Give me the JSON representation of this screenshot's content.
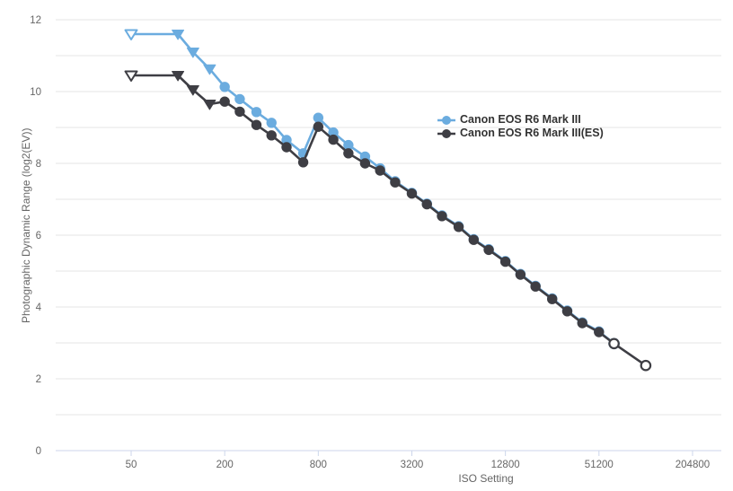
{
  "chart_data": {
    "type": "line",
    "title": "",
    "xlabel": "ISO Setting",
    "ylabel": "Photographic Dynamic Range (log2(EV))",
    "x_axis": {
      "scale": "log",
      "tick_isos": [
        50,
        200,
        800,
        3200,
        12800,
        51200,
        204800
      ],
      "tick_labels": [
        "50",
        "200",
        "800",
        "3200",
        "12800",
        "51200",
        "204800"
      ]
    },
    "y_axis": {
      "min": 0,
      "max": 12,
      "grid_step": 1,
      "tick_values": [
        0,
        2,
        4,
        6,
        8,
        10,
        12
      ],
      "tick_labels": [
        "0",
        "2",
        "4",
        "6",
        "8",
        "10",
        "12"
      ]
    },
    "grid": true,
    "legend_position": "inside-center-right",
    "colors": {
      "series_blue": "#6BACDF",
      "series_black": "#3E3E44",
      "grid_line": "#e6e6e6",
      "x_axis_line": "#ccd6eb",
      "tick_label": "#666666",
      "legend_text": "#333333",
      "background": "#ffffff"
    },
    "marker_note": "triangle-open and circle-open markers are white-filled (extended ISO settings); triangle and circle are solid",
    "series": [
      {
        "name": "Canon EOS R6 Mark III",
        "color": "#6BACDF",
        "points": [
          {
            "iso": 50,
            "pdr": 11.6,
            "marker": "triangle-open"
          },
          {
            "iso": 100,
            "pdr": 11.6,
            "marker": "triangle"
          },
          {
            "iso": 125,
            "pdr": 11.1,
            "marker": "triangle"
          },
          {
            "iso": 160,
            "pdr": 10.63,
            "marker": "triangle"
          },
          {
            "iso": 200,
            "pdr": 10.13,
            "marker": "circle"
          },
          {
            "iso": 250,
            "pdr": 9.79,
            "marker": "circle"
          },
          {
            "iso": 320,
            "pdr": 9.43,
            "marker": "circle"
          },
          {
            "iso": 400,
            "pdr": 9.13,
            "marker": "circle"
          },
          {
            "iso": 500,
            "pdr": 8.65,
            "marker": "circle"
          },
          {
            "iso": 640,
            "pdr": 8.28,
            "marker": "circle"
          },
          {
            "iso": 800,
            "pdr": 9.27,
            "marker": "circle"
          },
          {
            "iso": 1000,
            "pdr": 8.86,
            "marker": "circle"
          },
          {
            "iso": 1250,
            "pdr": 8.51,
            "marker": "circle"
          },
          {
            "iso": 1600,
            "pdr": 8.19,
            "marker": "circle"
          },
          {
            "iso": 2000,
            "pdr": 7.86,
            "marker": "circle"
          },
          {
            "iso": 2500,
            "pdr": 7.5,
            "marker": "circle"
          },
          {
            "iso": 3200,
            "pdr": 7.18,
            "marker": "circle"
          },
          {
            "iso": 4000,
            "pdr": 6.88,
            "marker": "circle"
          },
          {
            "iso": 5000,
            "pdr": 6.55,
            "marker": "circle"
          },
          {
            "iso": 6400,
            "pdr": 6.25,
            "marker": "circle"
          },
          {
            "iso": 8000,
            "pdr": 5.89,
            "marker": "circle"
          },
          {
            "iso": 10000,
            "pdr": 5.61,
            "marker": "circle"
          },
          {
            "iso": 12800,
            "pdr": 5.28,
            "marker": "circle"
          },
          {
            "iso": 16000,
            "pdr": 4.92,
            "marker": "circle"
          },
          {
            "iso": 20000,
            "pdr": 4.59,
            "marker": "circle"
          },
          {
            "iso": 25600,
            "pdr": 4.24,
            "marker": "circle"
          },
          {
            "iso": 32000,
            "pdr": 3.9,
            "marker": "circle"
          },
          {
            "iso": 40000,
            "pdr": 3.57,
            "marker": "circle"
          },
          {
            "iso": 51200,
            "pdr": 3.32,
            "marker": "circle"
          },
          {
            "iso": 64000,
            "pdr": 2.98,
            "marker": "circle-open"
          }
        ]
      },
      {
        "name": "Canon EOS R6 Mark III(ES)",
        "color": "#3E3E44",
        "points": [
          {
            "iso": 50,
            "pdr": 10.45,
            "marker": "triangle-open"
          },
          {
            "iso": 100,
            "pdr": 10.45,
            "marker": "triangle"
          },
          {
            "iso": 125,
            "pdr": 10.05,
            "marker": "triangle"
          },
          {
            "iso": 160,
            "pdr": 9.65,
            "marker": "triangle"
          },
          {
            "iso": 200,
            "pdr": 9.72,
            "marker": "circle"
          },
          {
            "iso": 250,
            "pdr": 9.44,
            "marker": "circle"
          },
          {
            "iso": 320,
            "pdr": 9.07,
            "marker": "circle"
          },
          {
            "iso": 400,
            "pdr": 8.78,
            "marker": "circle"
          },
          {
            "iso": 500,
            "pdr": 8.45,
            "marker": "circle"
          },
          {
            "iso": 640,
            "pdr": 8.03,
            "marker": "circle"
          },
          {
            "iso": 800,
            "pdr": 9.02,
            "marker": "circle"
          },
          {
            "iso": 1000,
            "pdr": 8.66,
            "marker": "circle"
          },
          {
            "iso": 1250,
            "pdr": 8.28,
            "marker": "circle"
          },
          {
            "iso": 1600,
            "pdr": 8.0,
            "marker": "circle"
          },
          {
            "iso": 2000,
            "pdr": 7.8,
            "marker": "circle"
          },
          {
            "iso": 2500,
            "pdr": 7.47,
            "marker": "circle"
          },
          {
            "iso": 3200,
            "pdr": 7.16,
            "marker": "circle"
          },
          {
            "iso": 4000,
            "pdr": 6.86,
            "marker": "circle"
          },
          {
            "iso": 5000,
            "pdr": 6.53,
            "marker": "circle"
          },
          {
            "iso": 6400,
            "pdr": 6.23,
            "marker": "circle"
          },
          {
            "iso": 8000,
            "pdr": 5.87,
            "marker": "circle"
          },
          {
            "iso": 10000,
            "pdr": 5.59,
            "marker": "circle"
          },
          {
            "iso": 12800,
            "pdr": 5.26,
            "marker": "circle"
          },
          {
            "iso": 16000,
            "pdr": 4.9,
            "marker": "circle"
          },
          {
            "iso": 20000,
            "pdr": 4.57,
            "marker": "circle"
          },
          {
            "iso": 25600,
            "pdr": 4.22,
            "marker": "circle"
          },
          {
            "iso": 32000,
            "pdr": 3.88,
            "marker": "circle"
          },
          {
            "iso": 40000,
            "pdr": 3.55,
            "marker": "circle"
          },
          {
            "iso": 51200,
            "pdr": 3.3,
            "marker": "circle"
          },
          {
            "iso": 64000,
            "pdr": 2.98,
            "marker": "circle-open"
          },
          {
            "iso": 102400,
            "pdr": 2.37,
            "marker": "circle-open"
          }
        ]
      }
    ]
  }
}
